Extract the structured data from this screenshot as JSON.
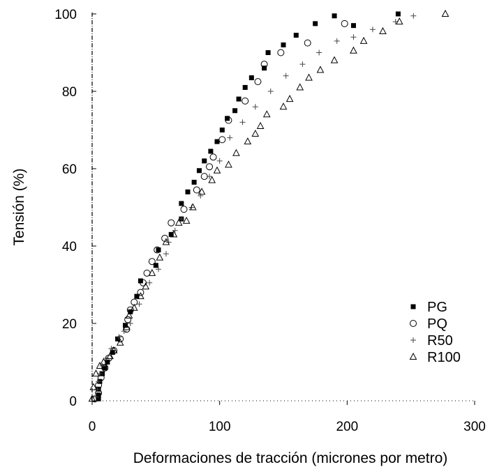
{
  "chart_data": {
    "type": "scatter",
    "xlabel": "Deformaciones de tracción (micrones por metro)",
    "ylabel": "Tensión (%)",
    "xlim": [
      0,
      300
    ],
    "ylim": [
      0,
      100
    ],
    "xticks": [
      "0",
      "100",
      "200",
      "300"
    ],
    "yticks": [
      "0",
      "20",
      "40",
      "60",
      "80",
      "100"
    ],
    "grid": false,
    "legend_position": "bottom-right",
    "series": [
      {
        "name": "PG",
        "marker": "filled-square",
        "points": [
          [
            5,
            0.5
          ],
          [
            5,
            1.5
          ],
          [
            5,
            3
          ],
          [
            6,
            5
          ],
          [
            8,
            7
          ],
          [
            10,
            8.5
          ],
          [
            12,
            10
          ],
          [
            16,
            12.5
          ],
          [
            20,
            16
          ],
          [
            26,
            19.5
          ],
          [
            30,
            23
          ],
          [
            35,
            27
          ],
          [
            38,
            31
          ],
          [
            50,
            35
          ],
          [
            52,
            39
          ],
          [
            62,
            43
          ],
          [
            70,
            47
          ],
          [
            70,
            51
          ],
          [
            75,
            54
          ],
          [
            80,
            56.5
          ],
          [
            84,
            59.5
          ],
          [
            88,
            62
          ],
          [
            93,
            64.5
          ],
          [
            98,
            67
          ],
          [
            102,
            70
          ],
          [
            106,
            73
          ],
          [
            112,
            75
          ],
          [
            115,
            78
          ],
          [
            120,
            81
          ],
          [
            125,
            83.5
          ],
          [
            135,
            86
          ],
          [
            138,
            90
          ],
          [
            150,
            92
          ],
          [
            160,
            94.5
          ],
          [
            175,
            97.5
          ],
          [
            190,
            99.5
          ],
          [
            205,
            97
          ],
          [
            240,
            100
          ]
        ]
      },
      {
        "name": "PQ",
        "marker": "open-circle",
        "points": [
          [
            2,
            0.5
          ],
          [
            5,
            2
          ],
          [
            5,
            4
          ],
          [
            7,
            6
          ],
          [
            10,
            8.5
          ],
          [
            13,
            11
          ],
          [
            17,
            13
          ],
          [
            22,
            16
          ],
          [
            27,
            18.5
          ],
          [
            28,
            21
          ],
          [
            30,
            23.5
          ],
          [
            33,
            25.5
          ],
          [
            38,
            28
          ],
          [
            40,
            30.5
          ],
          [
            43,
            33
          ],
          [
            47,
            36
          ],
          [
            51,
            39
          ],
          [
            57,
            42
          ],
          [
            62,
            46
          ],
          [
            72,
            49.5
          ],
          [
            82,
            54.5
          ],
          [
            88,
            58
          ],
          [
            92,
            60.5
          ],
          [
            95,
            63
          ],
          [
            102,
            67.5
          ],
          [
            107,
            72.5
          ],
          [
            120,
            77.5
          ],
          [
            130,
            82.5
          ],
          [
            135,
            87
          ],
          [
            148,
            90
          ],
          [
            169,
            92.5
          ],
          [
            198,
            97.5
          ]
        ]
      },
      {
        "name": "R50",
        "marker": "plus",
        "points": [
          [
            3,
            1
          ],
          [
            4,
            3
          ],
          [
            5,
            5
          ],
          [
            6,
            7
          ],
          [
            8,
            9
          ],
          [
            11,
            11
          ],
          [
            15,
            13.5
          ],
          [
            21,
            16.5
          ],
          [
            25,
            18
          ],
          [
            30,
            20
          ],
          [
            37,
            25
          ],
          [
            45,
            30.5
          ],
          [
            52,
            34
          ],
          [
            58,
            38
          ],
          [
            60,
            41
          ],
          [
            65,
            44
          ],
          [
            70,
            47
          ],
          [
            78,
            50
          ],
          [
            85,
            53
          ],
          [
            92,
            58
          ],
          [
            100,
            62
          ],
          [
            108,
            68
          ],
          [
            118,
            72
          ],
          [
            128,
            76
          ],
          [
            140,
            80
          ],
          [
            152,
            84
          ],
          [
            165,
            87
          ],
          [
            178,
            90
          ],
          [
            192,
            93
          ],
          [
            205,
            94
          ],
          [
            220,
            96
          ],
          [
            238,
            98
          ],
          [
            252,
            99.5
          ]
        ]
      },
      {
        "name": "R100",
        "marker": "open-triangle",
        "points": [
          [
            0,
            0.5
          ],
          [
            1,
            3.5
          ],
          [
            3,
            7
          ],
          [
            6,
            9
          ],
          [
            9,
            10
          ],
          [
            14,
            11.5
          ],
          [
            17,
            13
          ],
          [
            22,
            15
          ],
          [
            27,
            19
          ],
          [
            29,
            22
          ],
          [
            33,
            24
          ],
          [
            38,
            27
          ],
          [
            42,
            29.5
          ],
          [
            47,
            33
          ],
          [
            53,
            37
          ],
          [
            58,
            41
          ],
          [
            64,
            43
          ],
          [
            68,
            46
          ],
          [
            74,
            46.5
          ],
          [
            79,
            50
          ],
          [
            86,
            54
          ],
          [
            94,
            57
          ],
          [
            98,
            59.5
          ],
          [
            107,
            61
          ],
          [
            113,
            64
          ],
          [
            122,
            67
          ],
          [
            128,
            69
          ],
          [
            132,
            71
          ],
          [
            137,
            74
          ],
          [
            150,
            76
          ],
          [
            155,
            78
          ],
          [
            163,
            81
          ],
          [
            170,
            83.5
          ],
          [
            179,
            85.5
          ],
          [
            190,
            88
          ],
          [
            205,
            90.5
          ],
          [
            213,
            93
          ],
          [
            228,
            95.5
          ],
          [
            241,
            98
          ],
          [
            277,
            100
          ]
        ]
      }
    ]
  }
}
